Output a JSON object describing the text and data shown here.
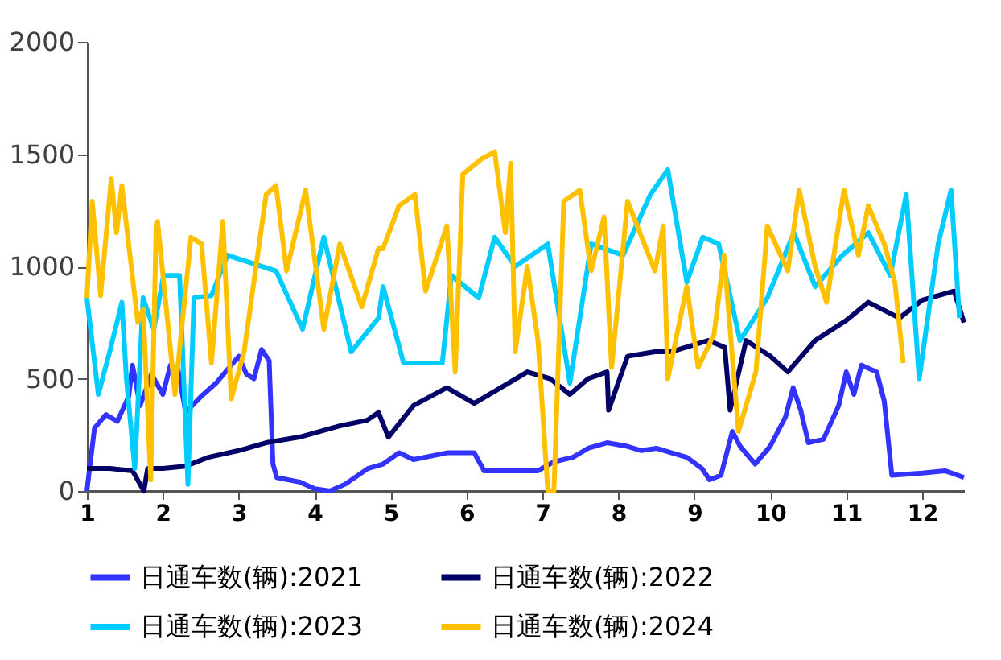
{
  "chart_data": {
    "type": "line",
    "xlim": [
      1,
      12.55
    ],
    "xticks": [
      1,
      2,
      3,
      4,
      5,
      6,
      7,
      8,
      9,
      10,
      11,
      12
    ],
    "ylim": [
      0,
      2000
    ],
    "yticks": [
      0,
      500,
      1000,
      1500,
      2000
    ],
    "grid": false,
    "legend": "bottom",
    "line_style": "solid",
    "series": [
      {
        "name": "日通车数(辆):2021",
        "color": "#3333ff",
        "x": [
          1.0,
          1.1,
          1.25,
          1.4,
          1.55,
          1.6,
          1.7,
          1.85,
          2.0,
          2.1,
          2.2,
          2.3,
          2.5,
          2.7,
          2.9,
          3.0,
          3.1,
          3.2,
          3.3,
          3.4,
          3.45,
          3.5,
          3.8,
          4.0,
          4.2,
          4.4,
          4.7,
          4.9,
          5.11,
          5.3,
          5.74,
          6.1,
          6.23,
          6.94,
          7.15,
          7.4,
          7.6,
          7.85,
          8.1,
          8.3,
          8.5,
          8.7,
          8.9,
          9.1,
          9.2,
          9.35,
          9.5,
          9.6,
          9.8,
          10.0,
          10.2,
          10.3,
          10.4,
          10.5,
          10.7,
          10.9,
          11.0,
          11.1,
          11.2,
          11.4,
          11.5,
          11.6,
          12.0,
          12.3,
          12.55
        ],
        "values": [
          0,
          280,
          340,
          310,
          420,
          560,
          380,
          520,
          430,
          560,
          540,
          350,
          420,
          480,
          560,
          600,
          520,
          500,
          630,
          580,
          120,
          60,
          40,
          10,
          0,
          30,
          100,
          120,
          170,
          140,
          170,
          170,
          90,
          90,
          130,
          150,
          190,
          215,
          200,
          180,
          190,
          170,
          150,
          100,
          50,
          70,
          265,
          200,
          120,
          200,
          330,
          460,
          360,
          215,
          230,
          380,
          530,
          430,
          560,
          530,
          400,
          70,
          80,
          90,
          60
        ]
      },
      {
        "name": "日通车数(辆):2022",
        "color": "#000066",
        "x": [
          1.0,
          1.3,
          1.6,
          1.75,
          1.8,
          2.0,
          2.3,
          2.6,
          3.0,
          3.36,
          3.8,
          4.33,
          4.69,
          4.84,
          4.97,
          5.3,
          5.74,
          6.1,
          6.5,
          6.8,
          7.1,
          7.36,
          7.6,
          7.85,
          7.87,
          8.12,
          8.48,
          8.69,
          9.18,
          9.4,
          9.47,
          9.68,
          10.0,
          10.23,
          10.59,
          11.0,
          11.29,
          11.7,
          12.0,
          12.42,
          12.55
        ],
        "values": [
          100,
          100,
          90,
          0,
          100,
          100,
          110,
          150,
          180,
          215,
          240,
          290,
          315,
          350,
          240,
          380,
          460,
          390,
          470,
          530,
          500,
          430,
          500,
          530,
          360,
          600,
          620,
          620,
          670,
          640,
          360,
          670,
          600,
          530,
          670,
          760,
          840,
          770,
          850,
          890,
          750
        ]
      },
      {
        "name": "日通车数(辆):2023",
        "color": "#00ccff",
        "x": [
          1.0,
          1.15,
          1.3,
          1.46,
          1.52,
          1.63,
          1.74,
          1.88,
          2.01,
          2.22,
          2.33,
          2.41,
          2.64,
          2.85,
          3.49,
          3.84,
          4.12,
          4.48,
          4.84,
          4.9,
          5.17,
          5.68,
          5.8,
          6.16,
          6.37,
          6.64,
          7.07,
          7.36,
          7.64,
          8.06,
          8.42,
          8.65,
          8.9,
          9.11,
          9.32,
          9.6,
          9.96,
          10.31,
          10.59,
          10.95,
          11.29,
          11.58,
          11.79,
          11.96,
          12.21,
          12.38,
          12.49
        ],
        "values": [
          860,
          430,
          620,
          840,
          500,
          100,
          860,
          720,
          960,
          960,
          30,
          860,
          870,
          1050,
          980,
          720,
          1130,
          620,
          770,
          910,
          570,
          570,
          960,
          860,
          1130,
          1000,
          1100,
          480,
          1100,
          1050,
          1320,
          1430,
          930,
          1130,
          1100,
          670,
          860,
          1150,
          910,
          1050,
          1150,
          960,
          1320,
          500,
          1100,
          1340,
          770
        ]
      },
      {
        "name": "日通车数(辆):2024",
        "color": "#ffc000",
        "x": [
          1.0,
          1.07,
          1.18,
          1.32,
          1.39,
          1.46,
          1.67,
          1.74,
          1.84,
          1.91,
          1.93,
          2.16,
          2.37,
          2.51,
          2.64,
          2.79,
          2.9,
          3.07,
          3.36,
          3.49,
          3.63,
          3.88,
          4.12,
          4.33,
          4.62,
          4.84,
          4.9,
          5.11,
          5.32,
          5.46,
          5.74,
          5.85,
          5.95,
          6.2,
          6.37,
          6.51,
          6.58,
          6.64,
          6.8,
          6.94,
          7.07,
          7.15,
          7.28,
          7.49,
          7.64,
          7.81,
          7.91,
          8.12,
          8.48,
          8.59,
          8.65,
          8.9,
          9.05,
          9.26,
          9.39,
          9.58,
          9.81,
          9.96,
          10.23,
          10.38,
          10.59,
          10.74,
          10.97,
          11.16,
          11.29,
          11.5,
          11.64,
          11.75
        ],
        "values": [
          860,
          1290,
          870,
          1390,
          1150,
          1360,
          750,
          810,
          50,
          1150,
          1200,
          430,
          1130,
          1100,
          570,
          1200,
          410,
          620,
          1320,
          1360,
          980,
          1340,
          720,
          1100,
          820,
          1080,
          1080,
          1270,
          1320,
          890,
          1180,
          530,
          1410,
          1480,
          1510,
          1150,
          1460,
          620,
          1000,
          670,
          0,
          0,
          1290,
          1340,
          980,
          1220,
          550,
          1290,
          980,
          1180,
          500,
          910,
          550,
          700,
          1050,
          265,
          530,
          1180,
          980,
          1340,
          1000,
          840,
          1340,
          1050,
          1270,
          1100,
          930,
          570
        ]
      }
    ]
  }
}
